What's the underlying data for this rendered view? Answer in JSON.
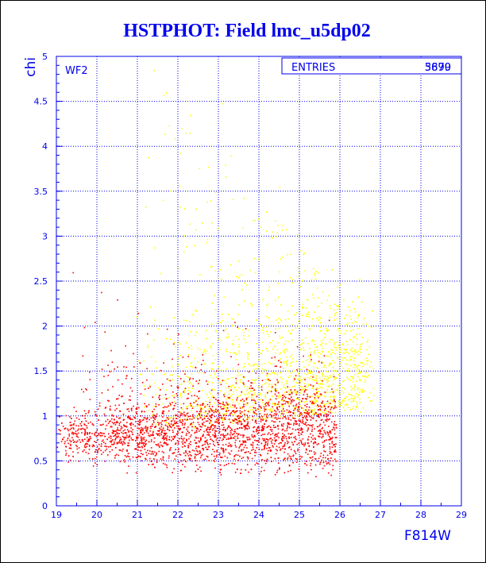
{
  "chart_data": {
    "type": "scatter",
    "title": "HSTPHOT: Field lmc_u5dp02",
    "xlabel": "F814W",
    "ylabel": "chi",
    "xlim": [
      19,
      29
    ],
    "ylim": [
      0,
      5
    ],
    "x_ticks": [
      "19",
      "20",
      "21",
      "22",
      "23",
      "24",
      "25",
      "26",
      "27",
      "28",
      "29"
    ],
    "y_ticks": [
      "0",
      "0.5",
      "1",
      "1.5",
      "2",
      "2.5",
      "3",
      "3.5",
      "4",
      "4.5",
      "5"
    ],
    "grid": true,
    "panel_label": "WF2",
    "stats": {
      "label": "ENTRIES",
      "values": [
        "3699",
        "5870"
      ]
    },
    "series_colors": [
      "#ff0000",
      "#ffff00"
    ],
    "series": [
      {
        "color": "#ff0000",
        "count_shown": 3699,
        "x_range": [
          19.0,
          25.9
        ],
        "y_core_range": [
          0.35,
          1.5
        ],
        "points_sample": [
          [
            19.2,
            0.72
          ],
          [
            19.5,
            0.64
          ],
          [
            19.8,
            0.81
          ],
          [
            20.1,
            0.58
          ],
          [
            20.4,
            0.92
          ],
          [
            20.7,
            0.76
          ],
          [
            21.0,
            0.69
          ],
          [
            21.3,
            0.84
          ],
          [
            21.6,
            0.61
          ],
          [
            21.9,
            0.95
          ],
          [
            22.2,
            0.73
          ],
          [
            22.5,
            0.66
          ],
          [
            22.8,
            0.88
          ],
          [
            23.1,
            0.79
          ],
          [
            23.4,
            0.71
          ],
          [
            23.7,
            0.97
          ],
          [
            24.0,
            0.85
          ],
          [
            24.3,
            1.05
          ],
          [
            24.6,
            0.78
          ],
          [
            24.9,
            1.12
          ],
          [
            25.2,
            0.91
          ],
          [
            25.5,
            0.83
          ],
          [
            25.7,
            1.02
          ],
          [
            19.4,
            2.6
          ],
          [
            20.1,
            2.38
          ]
        ]
      },
      {
        "color": "#ffff00",
        "count_shown": 5870,
        "x_range": [
          19.6,
          27.0
        ],
        "y_core_range": [
          0.5,
          4.9
        ],
        "points_sample": [
          [
            21.4,
            4.85
          ],
          [
            21.7,
            4.6
          ],
          [
            22.3,
            4.35
          ],
          [
            23.1,
            4.48
          ],
          [
            23.3,
            3.9
          ],
          [
            22.8,
            3.4
          ],
          [
            23.6,
            3.1
          ],
          [
            24.5,
            3.55
          ],
          [
            23.9,
            2.6
          ],
          [
            24.2,
            2.25
          ],
          [
            24.8,
            1.85
          ],
          [
            25.1,
            1.55
          ],
          [
            25.6,
            1.42
          ],
          [
            26.1,
            1.2
          ],
          [
            26.5,
            1.05
          ],
          [
            22.4,
            2.9
          ],
          [
            21.9,
            2.1
          ],
          [
            23.5,
            1.8
          ],
          [
            24.6,
            1.35
          ],
          [
            25.3,
            1.15
          ]
        ]
      }
    ]
  }
}
